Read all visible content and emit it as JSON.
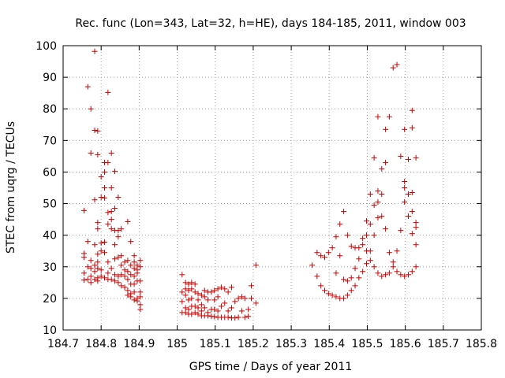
{
  "chart_data": {
    "type": "scatter",
    "title": "Rec. func (Lon=343, Lat=32, h=HE), days 184-185, 2011, window 003",
    "xlabel": "GPS time / Days of year 2011",
    "ylabel": "STEC from uqrg / TECUs",
    "xlim": [
      184.7,
      185.8
    ],
    "ylim": [
      10,
      100
    ],
    "x_ticks": [
      "184.7",
      "184.8",
      "184.9",
      "185",
      "185.1",
      "185.2",
      "185.3",
      "185.4",
      "185.5",
      "185.6",
      "185.7",
      "185.8"
    ],
    "y_ticks": [
      "10",
      "20",
      "30",
      "40",
      "50",
      "60",
      "70",
      "80",
      "90",
      "100"
    ],
    "grid": true,
    "marker_color": "#cc0000",
    "marker": "plus",
    "series": [
      {
        "points": [
          [
            184.755,
            47.8
          ],
          [
            184.755,
            34.2
          ],
          [
            184.755,
            33.0
          ],
          [
            184.755,
            28.0
          ],
          [
            184.755,
            25.8
          ],
          [
            184.765,
            87.0
          ],
          [
            184.765,
            38.0
          ],
          [
            184.765,
            30.0
          ],
          [
            184.765,
            26.0
          ],
          [
            184.773,
            80.0
          ],
          [
            184.773,
            66.0
          ],
          [
            184.773,
            32.0
          ],
          [
            184.773,
            29.5
          ],
          [
            184.773,
            27.0
          ],
          [
            184.773,
            25.0
          ],
          [
            184.783,
            98.2
          ],
          [
            184.783,
            73.2
          ],
          [
            184.783,
            51.2
          ],
          [
            184.783,
            37.0
          ],
          [
            184.783,
            30.5
          ],
          [
            184.783,
            28.5
          ],
          [
            184.783,
            26.0
          ],
          [
            184.791,
            73.0
          ],
          [
            184.791,
            65.5
          ],
          [
            184.791,
            44.0
          ],
          [
            184.791,
            42.0
          ],
          [
            184.791,
            34.0
          ],
          [
            184.791,
            31.5
          ],
          [
            184.791,
            29.5
          ],
          [
            184.791,
            26.5
          ],
          [
            184.791,
            25.5
          ],
          [
            184.8,
            58.5
          ],
          [
            184.8,
            52.0
          ],
          [
            184.8,
            37.5
          ],
          [
            184.8,
            35.0
          ],
          [
            184.8,
            29.0
          ],
          [
            184.8,
            27.0
          ],
          [
            184.809,
            63.0
          ],
          [
            184.809,
            60.0
          ],
          [
            184.809,
            55.0
          ],
          [
            184.809,
            51.8
          ],
          [
            184.809,
            37.8
          ],
          [
            184.809,
            34.5
          ],
          [
            184.809,
            26.5
          ],
          [
            184.818,
            85.2
          ],
          [
            184.818,
            63.0
          ],
          [
            184.818,
            47.2
          ],
          [
            184.818,
            43.5
          ],
          [
            184.818,
            31.5
          ],
          [
            184.818,
            28.0
          ],
          [
            184.818,
            26.0
          ],
          [
            184.827,
            66.0
          ],
          [
            184.827,
            55.0
          ],
          [
            184.827,
            47.5
          ],
          [
            184.827,
            45.0
          ],
          [
            184.827,
            42.0
          ],
          [
            184.827,
            29.5
          ],
          [
            184.827,
            26.0
          ],
          [
            184.836,
            60.2
          ],
          [
            184.836,
            48.5
          ],
          [
            184.836,
            41.5
          ],
          [
            184.836,
            37.0
          ],
          [
            184.836,
            32.5
          ],
          [
            184.836,
            27.5
          ],
          [
            184.836,
            25.5
          ],
          [
            184.845,
            52.0
          ],
          [
            184.845,
            41.5
          ],
          [
            184.845,
            39.5
          ],
          [
            184.845,
            33.0
          ],
          [
            184.845,
            27.0
          ],
          [
            184.845,
            25.0
          ],
          [
            184.853,
            42.0
          ],
          [
            184.853,
            33.5
          ],
          [
            184.853,
            30.5
          ],
          [
            184.853,
            27.5
          ],
          [
            184.853,
            24.0
          ],
          [
            184.862,
            31.5
          ],
          [
            184.862,
            29.0
          ],
          [
            184.862,
            27.0
          ],
          [
            184.862,
            23.5
          ],
          [
            184.87,
            44.3
          ],
          [
            184.87,
            32.0
          ],
          [
            184.87,
            28.5
          ],
          [
            184.87,
            26.0
          ],
          [
            184.87,
            22.5
          ],
          [
            184.87,
            21.0
          ],
          [
            184.878,
            38.0
          ],
          [
            184.878,
            30.5
          ],
          [
            184.878,
            27.5
          ],
          [
            184.878,
            24.5
          ],
          [
            184.878,
            21.5
          ],
          [
            184.878,
            20.5
          ],
          [
            184.887,
            33.5
          ],
          [
            184.887,
            31.5
          ],
          [
            184.887,
            29.5
          ],
          [
            184.887,
            27.0
          ],
          [
            184.887,
            24.5
          ],
          [
            184.887,
            22.0
          ],
          [
            184.887,
            19.5
          ],
          [
            184.895,
            30.5
          ],
          [
            184.895,
            29.0
          ],
          [
            184.895,
            28.0
          ],
          [
            184.895,
            25.5
          ],
          [
            184.895,
            20.0
          ],
          [
            184.895,
            19.2
          ],
          [
            184.903,
            32.0
          ],
          [
            184.903,
            30.0
          ],
          [
            184.903,
            25.5
          ],
          [
            184.903,
            22.0
          ],
          [
            184.903,
            20.5
          ],
          [
            184.903,
            18.0
          ],
          [
            184.903,
            16.5
          ],
          [
            185.013,
            27.5
          ],
          [
            185.013,
            22.0
          ],
          [
            185.013,
            19.0
          ],
          [
            185.013,
            15.5
          ],
          [
            185.022,
            25.0
          ],
          [
            185.022,
            23.0
          ],
          [
            185.022,
            21.0
          ],
          [
            185.022,
            17.0
          ],
          [
            185.022,
            15.5
          ],
          [
            185.03,
            24.5
          ],
          [
            185.03,
            22.5
          ],
          [
            185.03,
            19.5
          ],
          [
            185.03,
            16.5
          ],
          [
            185.03,
            15.0
          ],
          [
            185.038,
            25.0
          ],
          [
            185.038,
            23.0
          ],
          [
            185.038,
            20.0
          ],
          [
            185.038,
            17.5
          ],
          [
            185.038,
            15.0
          ],
          [
            185.047,
            24.5
          ],
          [
            185.047,
            22.0
          ],
          [
            185.047,
            17.5
          ],
          [
            185.047,
            15.5
          ],
          [
            185.055,
            21.5
          ],
          [
            185.055,
            19.5
          ],
          [
            185.055,
            17.0
          ],
          [
            185.055,
            15.0
          ],
          [
            185.064,
            21.0
          ],
          [
            185.064,
            18.0
          ],
          [
            185.064,
            16.0
          ],
          [
            185.064,
            14.5
          ],
          [
            185.072,
            22.5
          ],
          [
            185.072,
            20.5
          ],
          [
            185.072,
            17.0
          ],
          [
            185.072,
            14.5
          ],
          [
            185.081,
            22.0
          ],
          [
            185.081,
            19.5
          ],
          [
            185.081,
            15.5
          ],
          [
            185.081,
            14.5
          ],
          [
            185.09,
            22.0
          ],
          [
            185.09,
            16.5
          ],
          [
            185.09,
            14.3
          ],
          [
            185.098,
            22.5
          ],
          [
            185.098,
            19.5
          ],
          [
            185.098,
            16.5
          ],
          [
            185.098,
            14.2
          ],
          [
            185.107,
            23.0
          ],
          [
            185.107,
            20.5
          ],
          [
            185.107,
            16.0
          ],
          [
            185.107,
            14.0
          ],
          [
            185.116,
            23.5
          ],
          [
            185.116,
            17.5
          ],
          [
            185.116,
            14.0
          ],
          [
            185.125,
            23.0
          ],
          [
            185.125,
            18.5
          ],
          [
            185.125,
            14.0
          ],
          [
            185.134,
            22.0
          ],
          [
            185.134,
            16.0
          ],
          [
            185.134,
            14.0
          ],
          [
            185.143,
            23.5
          ],
          [
            185.143,
            17.0
          ],
          [
            185.143,
            13.8
          ],
          [
            185.152,
            19.0
          ],
          [
            185.152,
            13.8
          ],
          [
            185.161,
            20.0
          ],
          [
            185.161,
            14.0
          ],
          [
            185.17,
            20.5
          ],
          [
            185.17,
            16.0
          ],
          [
            185.178,
            20.0
          ],
          [
            185.178,
            14.0
          ],
          [
            185.187,
            16.5
          ],
          [
            185.187,
            14.3
          ],
          [
            185.195,
            24.0
          ],
          [
            185.195,
            20.0
          ],
          [
            185.207,
            30.5
          ],
          [
            185.207,
            18.5
          ],
          [
            185.355,
            30.5
          ],
          [
            185.368,
            34.5
          ],
          [
            185.368,
            27.0
          ],
          [
            185.378,
            33.5
          ],
          [
            185.378,
            24.0
          ],
          [
            185.388,
            33.0
          ],
          [
            185.388,
            22.5
          ],
          [
            185.398,
            34.5
          ],
          [
            185.398,
            21.5
          ],
          [
            185.408,
            36.0
          ],
          [
            185.408,
            21.0
          ],
          [
            185.418,
            39.5
          ],
          [
            185.418,
            28.0
          ],
          [
            185.418,
            20.5
          ],
          [
            185.428,
            43.5
          ],
          [
            185.428,
            33.5
          ],
          [
            185.428,
            20.0
          ],
          [
            185.438,
            47.5
          ],
          [
            185.438,
            26.0
          ],
          [
            185.438,
            20.0
          ],
          [
            185.448,
            40.0
          ],
          [
            185.448,
            25.5
          ],
          [
            185.448,
            21.0
          ],
          [
            185.458,
            36.5
          ],
          [
            185.458,
            26.5
          ],
          [
            185.458,
            22.5
          ],
          [
            185.468,
            36.0
          ],
          [
            185.468,
            29.5
          ],
          [
            185.468,
            24.0
          ],
          [
            185.478,
            36.0
          ],
          [
            185.478,
            32.5
          ],
          [
            185.478,
            26.5
          ],
          [
            185.488,
            39.0
          ],
          [
            185.488,
            37.0
          ],
          [
            185.488,
            28.5
          ],
          [
            185.498,
            44.5
          ],
          [
            185.498,
            40.0
          ],
          [
            185.498,
            35.0
          ],
          [
            185.498,
            31.0
          ],
          [
            185.508,
            53.0
          ],
          [
            185.508,
            43.5
          ],
          [
            185.508,
            35.0
          ],
          [
            185.508,
            32.0
          ],
          [
            185.518,
            64.5
          ],
          [
            185.518,
            49.5
          ],
          [
            185.518,
            40.0
          ],
          [
            185.518,
            30.0
          ],
          [
            185.528,
            77.5
          ],
          [
            185.528,
            54.0
          ],
          [
            185.528,
            50.5
          ],
          [
            185.528,
            45.5
          ],
          [
            185.528,
            28.0
          ],
          [
            185.538,
            61.0
          ],
          [
            185.538,
            53.0
          ],
          [
            185.538,
            46.0
          ],
          [
            185.538,
            27.0
          ],
          [
            185.548,
            73.5
          ],
          [
            185.548,
            63.0
          ],
          [
            185.548,
            42.0
          ],
          [
            185.548,
            27.5
          ],
          [
            185.558,
            77.5
          ],
          [
            185.558,
            34.5
          ],
          [
            185.558,
            28.0
          ],
          [
            185.568,
            93.0
          ],
          [
            185.568,
            31.5
          ],
          [
            185.568,
            30.0
          ],
          [
            185.578,
            94.0
          ],
          [
            185.578,
            35.0
          ],
          [
            185.578,
            28.5
          ],
          [
            185.588,
            65.0
          ],
          [
            185.588,
            41.5
          ],
          [
            185.588,
            27.5
          ],
          [
            185.598,
            73.5
          ],
          [
            185.598,
            57.0
          ],
          [
            185.598,
            55.0
          ],
          [
            185.598,
            50.5
          ],
          [
            185.598,
            27.0
          ],
          [
            185.608,
            64.0
          ],
          [
            185.608,
            53.0
          ],
          [
            185.608,
            46.0
          ],
          [
            185.608,
            27.5
          ],
          [
            185.618,
            79.5
          ],
          [
            185.618,
            74.0
          ],
          [
            185.618,
            53.5
          ],
          [
            185.618,
            47.5
          ],
          [
            185.618,
            40.5
          ],
          [
            185.618,
            28.5
          ],
          [
            185.628,
            64.5
          ],
          [
            185.628,
            44.0
          ],
          [
            185.628,
            42.5
          ],
          [
            185.628,
            37.0
          ],
          [
            185.628,
            30.0
          ]
        ]
      }
    ]
  }
}
